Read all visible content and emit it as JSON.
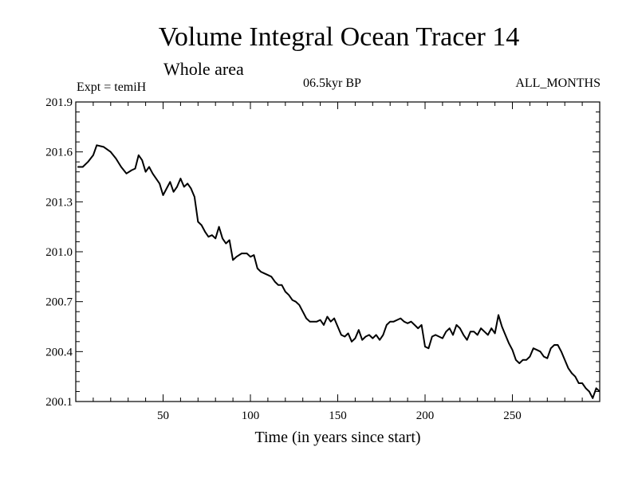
{
  "header": {
    "title": "Volume Integral Ocean Tracer 14",
    "subtitle": "Whole area",
    "expt": "Expt = temiH",
    "period": "06.5kyr BP",
    "months": "ALL_MONTHS"
  },
  "chart_data": {
    "type": "line",
    "title": "Volume Integral Ocean Tracer 14",
    "subtitle": "Whole area",
    "xlabel": "Time (in years since start)",
    "ylabel": "",
    "xlim": [
      0,
      300
    ],
    "ylim": [
      200.1,
      201.9
    ],
    "xticks": [
      50,
      100,
      150,
      200,
      250
    ],
    "yticks": [
      200.1,
      200.4,
      200.7,
      201.0,
      201.3,
      201.6,
      201.9
    ],
    "grid": false,
    "line_color": "#000000",
    "series": [
      {
        "x": [
          1,
          4,
          7,
          10,
          12,
          16,
          20,
          23,
          26,
          29,
          32,
          34,
          36,
          38,
          40,
          42,
          44,
          46,
          48,
          50,
          52,
          54,
          56,
          58,
          60,
          62,
          64,
          66,
          68,
          70,
          72,
          74,
          76,
          78,
          80,
          82,
          84,
          86,
          88,
          90,
          92,
          95,
          98,
          100,
          102,
          104,
          106,
          108,
          110,
          112,
          114,
          116,
          118,
          120,
          122,
          124,
          126,
          128,
          130,
          132,
          134,
          136,
          138,
          140,
          142,
          144,
          146,
          148,
          150,
          152,
          154,
          156,
          158,
          160,
          162,
          164,
          166,
          168,
          170,
          172,
          174,
          176,
          178,
          180,
          182,
          184,
          186,
          188,
          190,
          192,
          194,
          196,
          198,
          200,
          202,
          204,
          206,
          208,
          210,
          212,
          214,
          216,
          218,
          220,
          222,
          224,
          226,
          228,
          230,
          232,
          234,
          236,
          238,
          240,
          242,
          244,
          246,
          248,
          250,
          252,
          254,
          256,
          258,
          260,
          262,
          264,
          266,
          268,
          270,
          272,
          274,
          276,
          278,
          280,
          282,
          284,
          286,
          288,
          290,
          292,
          294,
          296,
          298,
          300
        ],
        "y": [
          201.51,
          201.51,
          201.54,
          201.58,
          201.64,
          201.63,
          201.6,
          201.56,
          201.51,
          201.47,
          201.49,
          201.5,
          201.58,
          201.55,
          201.48,
          201.51,
          201.47,
          201.44,
          201.41,
          201.34,
          201.38,
          201.42,
          201.36,
          201.39,
          201.44,
          201.39,
          201.41,
          201.38,
          201.33,
          201.18,
          201.16,
          201.12,
          201.09,
          201.1,
          201.08,
          201.15,
          201.08,
          201.05,
          201.07,
          200.95,
          200.97,
          200.99,
          200.99,
          200.97,
          200.98,
          200.9,
          200.88,
          200.87,
          200.86,
          200.85,
          200.82,
          200.8,
          200.8,
          200.76,
          200.74,
          200.71,
          200.7,
          200.68,
          200.64,
          200.6,
          200.58,
          200.58,
          200.58,
          200.59,
          200.56,
          200.61,
          200.58,
          200.6,
          200.55,
          200.5,
          200.49,
          200.51,
          200.46,
          200.48,
          200.53,
          200.47,
          200.49,
          200.5,
          200.48,
          200.5,
          200.47,
          200.5,
          200.56,
          200.58,
          200.58,
          200.59,
          200.6,
          200.58,
          200.57,
          200.58,
          200.56,
          200.54,
          200.56,
          200.43,
          200.42,
          200.49,
          200.5,
          200.49,
          200.48,
          200.52,
          200.54,
          200.5,
          200.56,
          200.54,
          200.5,
          200.47,
          200.52,
          200.52,
          200.5,
          200.54,
          200.52,
          200.5,
          200.54,
          200.51,
          200.62,
          200.55,
          200.5,
          200.45,
          200.41,
          200.35,
          200.33,
          200.35,
          200.35,
          200.37,
          200.42,
          200.41,
          200.4,
          200.37,
          200.36,
          200.42,
          200.44,
          200.44,
          200.4,
          200.35,
          200.3,
          200.27,
          200.25,
          200.21,
          200.21,
          200.18,
          200.16,
          200.12,
          200.18,
          200.16
        ]
      }
    ]
  }
}
